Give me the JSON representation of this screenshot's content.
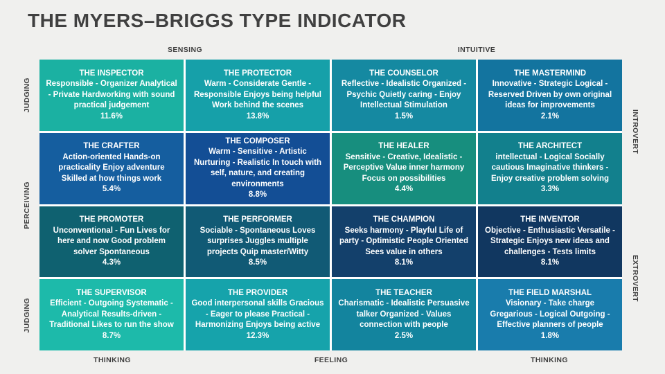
{
  "title": "THE MYERS–BRIGGS TYPE INDICATOR",
  "axes": {
    "sensing": "SENSING",
    "intuitive": "INTUITIVE",
    "thinking_left": "THINKING",
    "feeling": "FEELING",
    "thinking_right": "THINKING",
    "judging_top": "JUDGING",
    "perceiving": "PERCEIVING",
    "judging_bottom": "JUDGING",
    "introvert": "INTROVERT",
    "extrovert": "EXTROVERT"
  },
  "cells": [
    {
      "name": "THE INSPECTOR",
      "description": "Responsible - Organizer Analytical - Private Hardworking with sound practical judgement",
      "percent": "11.6%",
      "color": "#1bb1a2"
    },
    {
      "name": "THE PROTECTOR",
      "description": "Warm - Considerate Gentle - Responsible Enjoys being helpful Work behind the scenes",
      "percent": "13.8%",
      "color": "#16a0a9"
    },
    {
      "name": "THE COUNSELOR",
      "description": "Reflective - Idealistic Organized - Psychic Quietly caring - Enjoy Intellectual Stimulation",
      "percent": "1.5%",
      "color": "#1589a1"
    },
    {
      "name": "THE MASTERMIND",
      "description": "Innovative - Strategic Logical - Reserved Driven by own original ideas for improvements",
      "percent": "2.1%",
      "color": "#13749f"
    },
    {
      "name": "THE CRAFTER",
      "description": "Action-oriented Hands-on practicality Enjoy adventure Skilled at how things work",
      "percent": "5.4%",
      "color": "#155e9f"
    },
    {
      "name": "THE COMPOSER",
      "description": "Warm - Sensitive - Artistic Nurturing - Realistic In touch with self, nature, and creating environments",
      "percent": "8.8%",
      "color": "#134e95"
    },
    {
      "name": "THE HEALER",
      "description": "Sensitive - Creative, Idealistic - Perceptive Value inner harmony Focus on possibilities",
      "percent": "4.4%",
      "color": "#178e7e"
    },
    {
      "name": "THE ARCHITECT",
      "description": "intellectual - Logical Socially cautious Imaginative thinkers - Enjoy creative problem solving",
      "percent": "3.3%",
      "color": "#12808d"
    },
    {
      "name": "THE PROMOTER",
      "description": "Unconventional - Fun Lives for here and now Good problem solver Spontaneous",
      "percent": "4.3%",
      "color": "#0f6170"
    },
    {
      "name": "THE PERFORMER",
      "description": "Sociable - Spontaneous Loves surprises Juggles multiple projects Quip master/Witty",
      "percent": "8.5%",
      "color": "#115a75"
    },
    {
      "name": "THE CHAMPION",
      "description": "Seeks harmony - Playful Life of party - Optimistic People Oriented Sees value in others",
      "percent": "8.1%",
      "color": "#13406b"
    },
    {
      "name": "THE INVENTOR",
      "description": "Objective - Enthusiastic Versatile - Strategic Enjoys new ideas and challenges - Tests limits",
      "percent": "8.1%",
      "color": "#113760"
    },
    {
      "name": "THE SUPERVISOR",
      "description": "Efficient - Outgoing Systematic - Analytical Results-driven - Traditional Likes to run the show",
      "percent": "8.7%",
      "color": "#1dbaaa"
    },
    {
      "name": "THE PROVIDER",
      "description": "Good interpersonal skills Gracious - Eager to please Practical - Harmonizing Enjoys being active",
      "percent": "12.3%",
      "color": "#16a3ab"
    },
    {
      "name": "THE TEACHER",
      "description": "Charismatic - Idealistic Persuasive talker Organized - Values connection with people",
      "percent": "2.5%",
      "color": "#13849e"
    },
    {
      "name": "THE FIELD MARSHAL",
      "description": "Visionary - Take charge Gregarious - Logical Outgoing - Effective planners of people",
      "percent": "1.8%",
      "color": "#197cac"
    }
  ]
}
